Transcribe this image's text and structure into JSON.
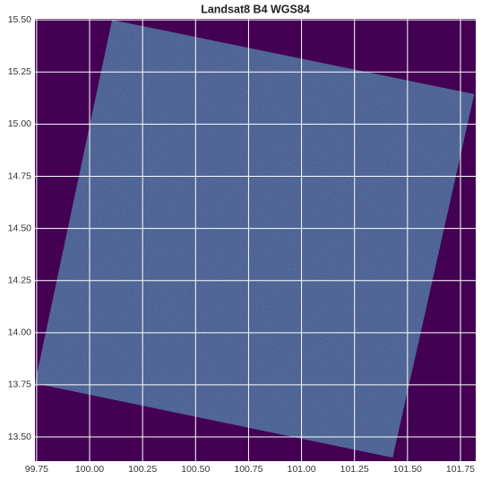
{
  "chart_data": {
    "type": "image",
    "title": "Landsat8 B4 WGS84",
    "background_color": "#440154",
    "color": "#3d5189",
    "grid": true,
    "footprint": {
      "x": [
        100.106,
        101.815,
        101.43,
        99.742
      ],
      "y": [
        15.5,
        15.144,
        13.401,
        13.757
      ]
    },
    "xlim": [
      99.742,
      101.822
    ],
    "ylim": [
      13.384,
      15.505
    ],
    "xticks": [
      99.75,
      {
        "value": 100,
        "label": "100.00"
      },
      100.25,
      {
        "value": 100.5,
        "label": "100.50"
      },
      100.75,
      {
        "value": 101,
        "label": "101.00"
      },
      101.25,
      {
        "value": 101.5,
        "label": "101.50"
      },
      101.75
    ],
    "yticks": [
      {
        "value": 13.5,
        "label": "13.50"
      },
      13.75,
      {
        "value": 14,
        "label": "14.00"
      },
      14.25,
      {
        "value": 14.5,
        "label": "14.50"
      },
      14.75,
      {
        "value": 15,
        "label": "15.00"
      },
      15.25,
      {
        "value": 15.5,
        "label": "15.50"
      }
    ]
  }
}
